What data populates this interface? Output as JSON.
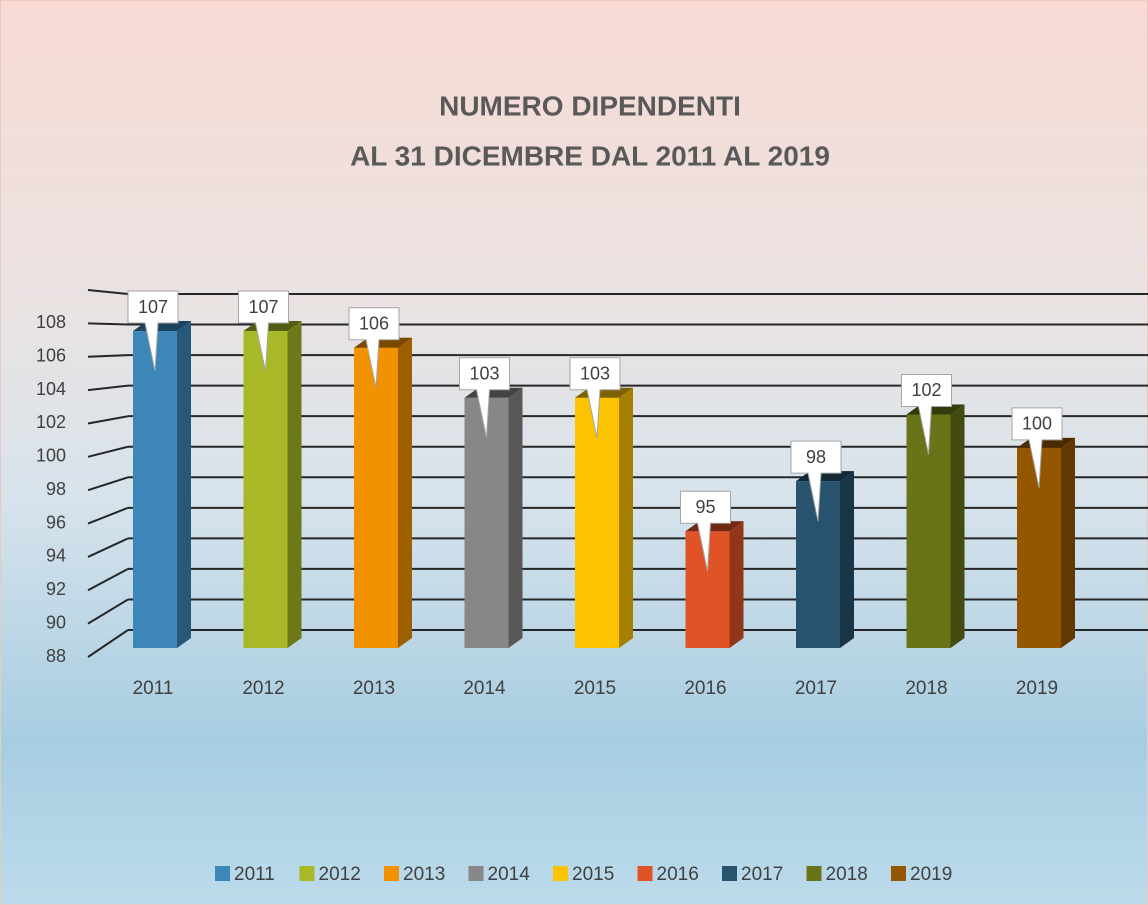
{
  "chart_data": {
    "type": "bar3d",
    "title": [
      "NUMERO DIPENDENTI",
      "AL 31 DICEMBRE DAL 2011 AL 2019"
    ],
    "categories": [
      "2011",
      "2012",
      "2013",
      "2014",
      "2015",
      "2016",
      "2017",
      "2018",
      "2019"
    ],
    "values": [
      107,
      107,
      106,
      103,
      103,
      95,
      98,
      102,
      100
    ],
    "colors": [
      "#3d87b8",
      "#a8b826",
      "#f39200",
      "#878787",
      "#fcc300",
      "#e05327",
      "#27536f",
      "#697419",
      "#955600"
    ],
    "ylim": [
      88,
      110
    ],
    "yticks": [
      88,
      90,
      92,
      94,
      96,
      98,
      100,
      102,
      104,
      106,
      108
    ],
    "grid": true,
    "legend": "bottom"
  }
}
